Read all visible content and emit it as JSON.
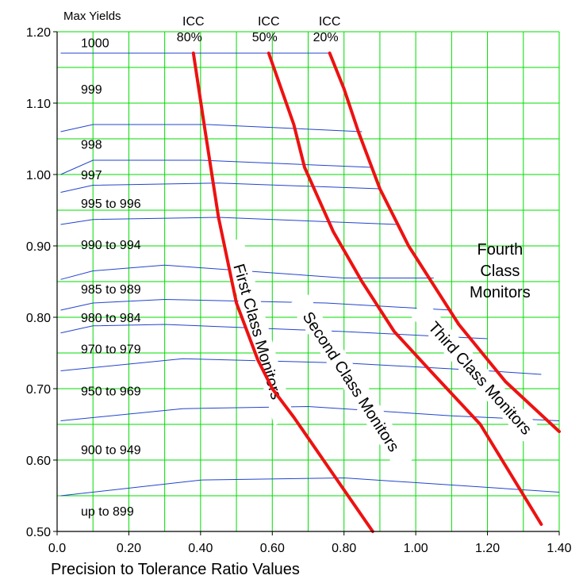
{
  "chart_data": {
    "type": "line",
    "xlabel": "Precision to Tolerance Ratio Values",
    "ylabel": "",
    "xlim": [
      0.0,
      1.4
    ],
    "ylim": [
      0.5,
      1.2
    ],
    "grid": true,
    "x_ticks": [
      "0.0",
      "0.20",
      "0.40",
      "0.60",
      "0.80",
      "1.00",
      "1.20",
      "1.40"
    ],
    "y_ticks": [
      "0.50",
      "0.60",
      "0.70",
      "0.80",
      "0.90",
      "1.00",
      "1.10",
      "1.20"
    ],
    "yield_header": "Max Yields",
    "yield_bands": [
      {
        "label": "1000",
        "y": 1.185
      },
      {
        "label": "999",
        "y": 1.12
      },
      {
        "label": "998",
        "y": 1.043
      },
      {
        "label": "997",
        "y": 1.0
      },
      {
        "label": "995 to 996",
        "y": 0.96
      },
      {
        "label": "990 to 994",
        "y": 0.902
      },
      {
        "label": "985 to 989",
        "y": 0.84
      },
      {
        "label": "980 to 984",
        "y": 0.8
      },
      {
        "label": "970 to 979",
        "y": 0.756
      },
      {
        "label": "950 to 969",
        "y": 0.697
      },
      {
        "label": "900 to 949",
        "y": 0.615
      },
      {
        "label": "up to 899",
        "y": 0.529
      }
    ],
    "yield_lines": [
      {
        "x": [
          0.01,
          0.76
        ],
        "y": [
          1.17,
          1.17
        ]
      },
      {
        "x": [
          0.01,
          0.1,
          0.42,
          0.85
        ],
        "y": [
          1.06,
          1.07,
          1.07,
          1.06
        ]
      },
      {
        "x": [
          0.01,
          0.1,
          0.4,
          0.88
        ],
        "y": [
          1.0,
          1.02,
          1.02,
          1.01
        ]
      },
      {
        "x": [
          0.01,
          0.1,
          0.45,
          0.9
        ],
        "y": [
          0.975,
          0.985,
          0.988,
          0.98
        ]
      },
      {
        "x": [
          0.01,
          0.1,
          0.45,
          0.95
        ],
        "y": [
          0.93,
          0.937,
          0.94,
          0.93
        ]
      },
      {
        "x": [
          0.01,
          0.1,
          0.3,
          0.8,
          1.05
        ],
        "y": [
          0.853,
          0.865,
          0.873,
          0.855,
          0.855
        ]
      },
      {
        "x": [
          0.01,
          0.1,
          0.3,
          0.75,
          1.1
        ],
        "y": [
          0.81,
          0.82,
          0.825,
          0.82,
          0.81
        ]
      },
      {
        "x": [
          0.01,
          0.1,
          0.3,
          0.8,
          1.2
        ],
        "y": [
          0.778,
          0.788,
          0.79,
          0.78,
          0.77
        ]
      },
      {
        "x": [
          0.01,
          0.35,
          0.8,
          1.2,
          1.35
        ],
        "y": [
          0.725,
          0.742,
          0.736,
          0.725,
          0.72
        ]
      },
      {
        "x": [
          0.01,
          0.35,
          0.7,
          1.1,
          1.4
        ],
        "y": [
          0.655,
          0.672,
          0.675,
          0.662,
          0.655
        ]
      },
      {
        "x": [
          0.01,
          0.4,
          0.8,
          1.4
        ],
        "y": [
          0.55,
          0.572,
          0.575,
          0.555
        ]
      }
    ],
    "icc_labels": [
      {
        "line1": "ICC",
        "line2": "80%"
      },
      {
        "line1": "ICC",
        "line2": "50%"
      },
      {
        "line1": "ICC",
        "line2": "20%"
      }
    ],
    "series": [
      {
        "x": [
          0.38,
          0.41,
          0.45,
          0.5,
          0.56,
          0.6,
          0.66,
          0.77,
          0.88
        ],
        "y": [
          1.17,
          1.07,
          0.94,
          0.82,
          0.74,
          0.7,
          0.66,
          0.58,
          0.5
        ]
      },
      {
        "x": [
          0.59,
          0.66,
          0.69,
          0.77,
          0.85,
          0.94,
          1.05,
          1.18,
          1.35
        ],
        "y": [
          1.17,
          1.07,
          1.01,
          0.92,
          0.85,
          0.78,
          0.72,
          0.65,
          0.51
        ]
      },
      {
        "x": [
          0.76,
          0.8,
          0.84,
          0.9,
          0.98,
          1.12,
          1.25,
          1.4
        ],
        "y": [
          1.17,
          1.12,
          1.06,
          0.98,
          0.9,
          0.79,
          0.71,
          0.64
        ]
      }
    ],
    "regions": [
      "First Class Monitors",
      "Second Class Monitors",
      "Third Class Monitors"
    ],
    "fourth_region": [
      "Fourth",
      "Class",
      "Monitors"
    ],
    "colors": {
      "grid": "#00dd00",
      "yield_line": "#2244cc",
      "boundary": "#ee1111",
      "axis": "#000000"
    }
  }
}
